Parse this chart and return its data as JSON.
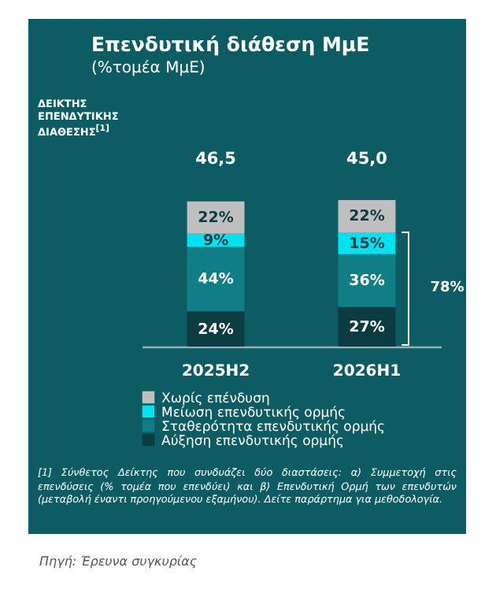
{
  "chart_data": {
    "type": "bar",
    "title": "Επενδυτική διάθεση ΜμΕ",
    "subtitle": "(%τομέα ΜμΕ)",
    "categories": [
      "2025H2",
      "2026H1"
    ],
    "stacked": true,
    "legend": "bottom",
    "series": [
      {
        "name": "Αύξηση επενδυτικής ορμής",
        "color": "#0b3c42",
        "values": [
          24,
          27
        ],
        "value_labels": [
          "24%",
          "27%"
        ]
      },
      {
        "name": "Σταθερότητα επενδυτικής ορμής",
        "color": "#117e86",
        "values": [
          44,
          36
        ],
        "value_labels": [
          "44%",
          "36%"
        ]
      },
      {
        "name": "Μείωση επενδυτικής ορμής",
        "color": "#00e1ef",
        "values": [
          9,
          15
        ],
        "value_labels": [
          "9%",
          "15%"
        ]
      },
      {
        "name": "Χωρίς επένδυση",
        "color": "#bfbfbf",
        "values": [
          22,
          22
        ],
        "value_labels": [
          "22%",
          "22%"
        ]
      }
    ],
    "annotations": [
      "ΔΕΙΚΤΗΣ ΕΠΕΝΔΥΤΙΚΗΣ ΔΙΑΘΕΣΗΣ$^{[1]}$",
      "46,5",
      "45,0",
      "78%",
      "[1] Σύνθετος Δείκτης που συνδυάζει δύο διαστάσεις: α) Συμμετοχή στις επενδύσεις (% τομέα που επενδύει) και β) Επενδυτική Ορμή των επενδυτών (μεταβολή έναντι προηγούμενου εξαμήνου). Δείτε παράρτημα για μεθοδολογία.",
      "Πηγή: Έρευνα συγκυρίας"
    ]
  }
}
